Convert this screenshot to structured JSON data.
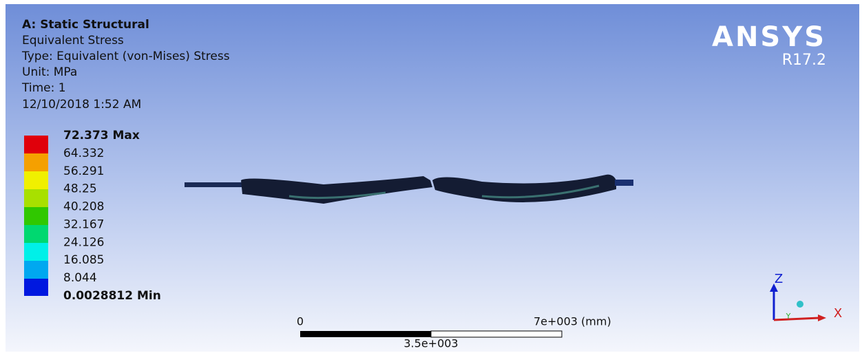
{
  "header": {
    "lines": [
      "A: Static Structural",
      "Equivalent Stress",
      "Type: Equivalent (von-Mises) Stress",
      "Unit: MPa",
      "Time: 1",
      "12/10/2018 1:52 AM"
    ]
  },
  "logo": {
    "name": "ANSYS",
    "version": "R17.2"
  },
  "legend": {
    "labels": [
      "72.373 Max",
      "64.332",
      "56.291",
      "48.25",
      "40.208",
      "32.167",
      "24.126",
      "16.085",
      "8.044",
      "0.0028812 Min"
    ]
  },
  "scale_bar": {
    "start": "0",
    "end": "7e+003 (mm)",
    "mid": "3.5e+003"
  },
  "triad": {
    "z": "Z",
    "y": "Y",
    "x": "X"
  }
}
